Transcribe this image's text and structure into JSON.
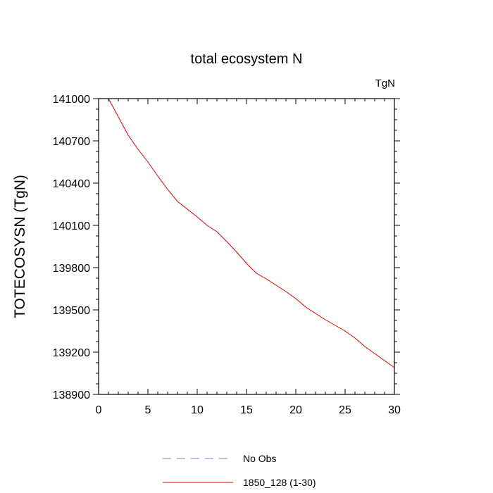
{
  "chart_data": {
    "type": "line",
    "title": "total ecosystem N",
    "units": "TgN",
    "ylabel": "TOTECOSYSN  (TgN)",
    "xlabel": "",
    "xlim": [
      0,
      30
    ],
    "ylim": [
      138900,
      141000
    ],
    "xticks": [
      0,
      5,
      10,
      15,
      20,
      25,
      30
    ],
    "yticks": [
      138900,
      139200,
      139500,
      139800,
      140100,
      140400,
      140700,
      141000
    ],
    "grid": false,
    "legend_position": "bottom",
    "series": [
      {
        "name": "No Obs",
        "style": "dashed",
        "color": "#8080e0",
        "x": [],
        "y": []
      },
      {
        "name": "1850_128 (1-30)",
        "style": "solid",
        "color": "#e00000",
        "x": [
          1,
          2,
          3,
          4,
          5,
          6,
          7,
          8,
          9,
          10,
          11,
          12,
          13,
          14,
          15,
          16,
          17,
          18,
          19,
          20,
          21,
          22,
          23,
          24,
          25,
          26,
          27,
          28,
          29,
          30
        ],
        "y": [
          141000,
          140870,
          140740,
          140640,
          140550,
          140450,
          140355,
          140270,
          140215,
          140160,
          140100,
          140055,
          139985,
          139910,
          139830,
          139760,
          139720,
          139675,
          139630,
          139580,
          139520,
          139475,
          139430,
          139390,
          139350,
          139300,
          139240,
          139190,
          139140,
          139090
        ]
      }
    ]
  }
}
